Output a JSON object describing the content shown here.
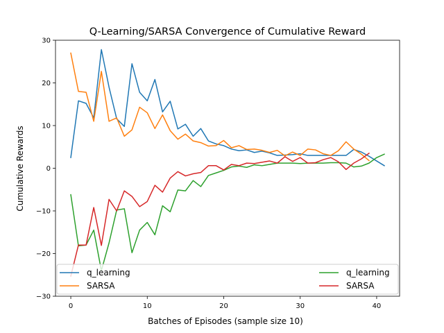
{
  "chart_data": {
    "type": "line",
    "title": "Q-Learning/SARSA Convergence of Cumulative Reward",
    "xlabel": "Batches of Episodes (sample size 10)",
    "ylabel": "Cumulative Rewards",
    "xlim": [
      -2,
      43
    ],
    "ylim": [
      -30,
      30
    ],
    "xticks": [
      0,
      10,
      20,
      30,
      40
    ],
    "yticks": [
      -30,
      -20,
      -10,
      0,
      10,
      20,
      30
    ],
    "xtick_labels": [
      "0",
      "10",
      "20",
      "30",
      "40"
    ],
    "ytick_labels": [
      "−30",
      "−20",
      "−10",
      "0",
      "10",
      "20",
      "30"
    ],
    "grid": false,
    "legend": {
      "placement": "lower",
      "entries_left": [
        0,
        1
      ],
      "entries_right": [
        2,
        3
      ]
    },
    "series": [
      {
        "name": "q_learning",
        "color": "#1f77b4",
        "x": [
          0,
          1,
          2,
          3,
          4,
          5,
          6,
          7,
          8,
          9,
          10,
          11,
          12,
          13,
          14,
          15,
          16,
          17,
          18,
          19,
          20,
          21,
          22,
          23,
          24,
          25,
          26,
          27,
          28,
          29,
          30,
          31,
          32,
          33,
          34,
          35,
          36,
          37,
          38,
          39,
          40,
          41
        ],
        "values": [
          2.5,
          15.8,
          15.2,
          11.8,
          27.8,
          19.0,
          11.6,
          9.8,
          24.5,
          17.8,
          15.8,
          20.8,
          13.2,
          15.7,
          9.2,
          10.3,
          7.5,
          9.3,
          6.4,
          5.7,
          5.3,
          4.5,
          4.1,
          4.3,
          3.7,
          4.0,
          3.6,
          3.0,
          3.1,
          3.2,
          3.4,
          3.0,
          3.0,
          3.0,
          3.0,
          3.0,
          3.0,
          4.4,
          3.8,
          2.8,
          1.7,
          0.6
        ]
      },
      {
        "name": "SARSA",
        "color": "#ff7f0e",
        "x": [
          0,
          1,
          2,
          3,
          4,
          5,
          6,
          7,
          8,
          9,
          10,
          11,
          12,
          13,
          14,
          15,
          16,
          17,
          18,
          19,
          20,
          21,
          22,
          23,
          24,
          25,
          26,
          27,
          28,
          29,
          30,
          31,
          32,
          33,
          34,
          35,
          36,
          37,
          38,
          39
        ],
        "values": [
          27.0,
          18.0,
          17.8,
          11.0,
          22.7,
          11.0,
          11.8,
          7.5,
          9.0,
          14.3,
          13.0,
          9.3,
          12.5,
          8.8,
          6.8,
          8.0,
          6.4,
          6.0,
          5.2,
          5.3,
          6.5,
          4.8,
          5.3,
          4.4,
          4.5,
          4.2,
          3.7,
          4.2,
          2.9,
          3.8,
          3.0,
          4.5,
          4.3,
          3.4,
          3.0,
          4.1,
          6.2,
          4.5,
          3.3,
          1.8
        ]
      },
      {
        "name": "q_learning",
        "color": "#2ca02c",
        "x": [
          0,
          1,
          2,
          3,
          4,
          5,
          6,
          7,
          8,
          9,
          10,
          11,
          12,
          13,
          14,
          15,
          16,
          17,
          18,
          19,
          20,
          21,
          22,
          23,
          24,
          25,
          26,
          27,
          28,
          29,
          30,
          31,
          32,
          33,
          34,
          35,
          36,
          37,
          38,
          39,
          40,
          41
        ],
        "values": [
          -6.2,
          -18.2,
          -18.0,
          -14.5,
          -24.0,
          -17.5,
          -9.8,
          -9.5,
          -19.8,
          -14.5,
          -12.7,
          -15.6,
          -8.8,
          -10.2,
          -5.1,
          -5.3,
          -2.9,
          -4.3,
          -1.7,
          -1.1,
          -0.5,
          0.3,
          0.5,
          0.2,
          0.8,
          0.6,
          0.9,
          1.2,
          1.2,
          1.2,
          1.1,
          1.2,
          1.2,
          1.2,
          1.3,
          1.3,
          1.2,
          0.3,
          0.5,
          1.2,
          2.5,
          3.3
        ]
      },
      {
        "name": "SARSA",
        "color": "#d62728",
        "x": [
          0,
          1,
          2,
          3,
          4,
          5,
          6,
          7,
          8,
          9,
          10,
          11,
          12,
          13,
          14,
          15,
          16,
          17,
          18,
          19,
          20,
          21,
          22,
          23,
          24,
          25,
          26,
          27,
          28,
          29,
          30,
          31,
          32,
          33,
          34,
          35,
          36,
          37,
          38,
          39
        ],
        "values": [
          -25.3,
          -18.0,
          -18.0,
          -9.2,
          -18.1,
          -7.3,
          -10.0,
          -5.3,
          -6.6,
          -9.0,
          -7.8,
          -4.0,
          -5.6,
          -2.3,
          -0.8,
          -1.8,
          -1.3,
          -1.0,
          0.6,
          0.6,
          -0.4,
          0.9,
          0.6,
          1.2,
          1.1,
          1.4,
          1.7,
          1.2,
          2.7,
          1.6,
          2.5,
          1.2,
          1.3,
          2.0,
          2.5,
          1.5,
          -0.3,
          1.2,
          2.2,
          3.5
        ]
      }
    ]
  }
}
